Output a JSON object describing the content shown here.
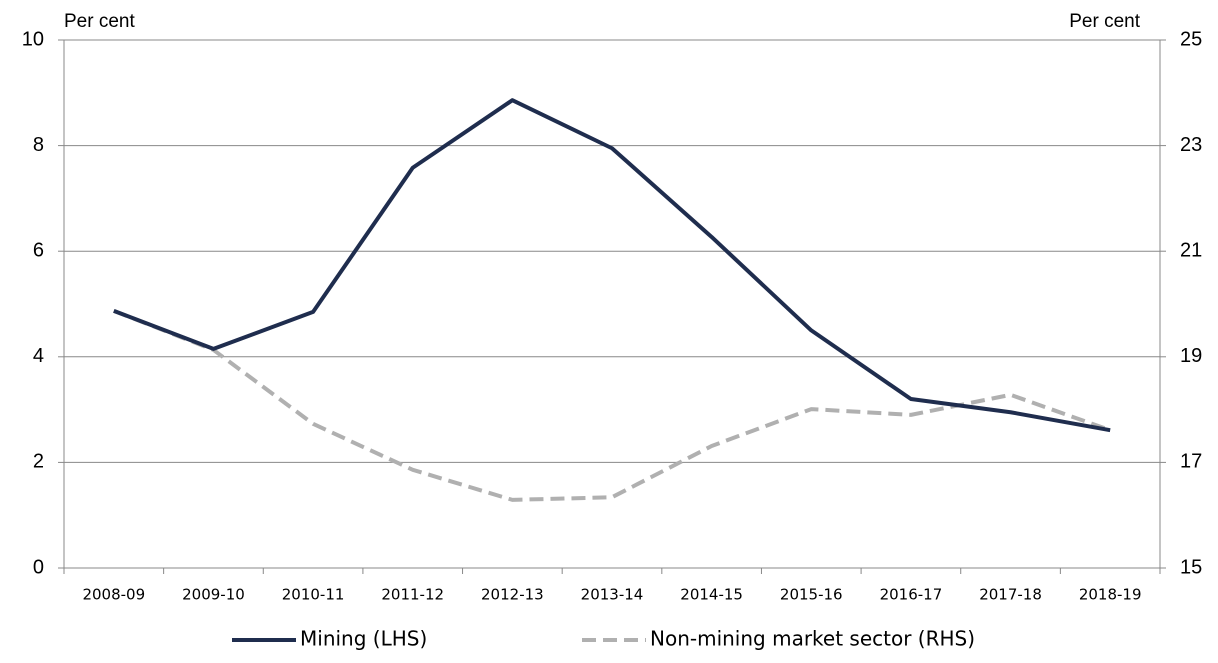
{
  "chart_data": {
    "type": "line",
    "y_label": "Per cent",
    "y2_label": "Per cent",
    "categories": [
      "2008-09",
      "2009-10",
      "2010-11",
      "2011-12",
      "2012-13",
      "2013-14",
      "2014-15",
      "2015-16",
      "2016-17",
      "2017-18",
      "2018-19"
    ],
    "series": [
      {
        "name": "Mining (LHS)",
        "color": "#1f2d4e",
        "dash": false,
        "axis": "y",
        "values": [
          4.87,
          4.15,
          4.85,
          7.58,
          8.86,
          7.95,
          6.27,
          4.5,
          3.2,
          2.95,
          2.61
        ]
      },
      {
        "name": "Non-mining market sector (RHS)",
        "color": "#b0b0b0",
        "dash": true,
        "axis": "y2",
        "values": [
          19.87,
          19.13,
          17.73,
          16.86,
          16.29,
          16.34,
          17.31,
          18.01,
          17.9,
          18.28,
          17.61
        ]
      }
    ],
    "ylim": [
      0,
      10
    ],
    "yticks": [
      0,
      2,
      4,
      6,
      8,
      10
    ],
    "y2lim": [
      15,
      25
    ],
    "y2ticks": [
      15,
      17,
      19,
      21,
      23,
      25
    ],
    "grid": true,
    "legend": "bottom"
  }
}
